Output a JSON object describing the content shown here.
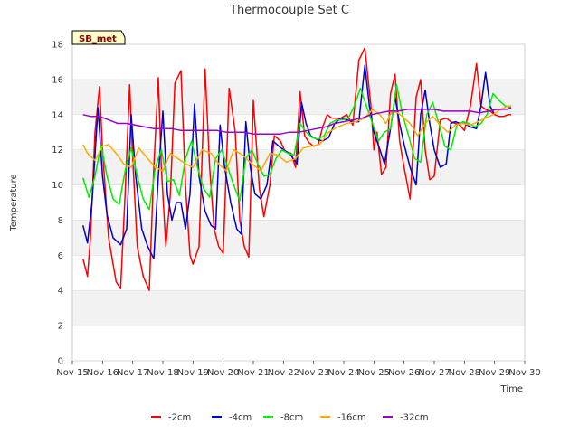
{
  "chart_data": {
    "type": "line",
    "title": "Thermocouple Set C",
    "xlabel": "Time",
    "ylabel": "Temperature",
    "ylim": [
      0,
      18
    ],
    "yticks": [
      0,
      2,
      4,
      6,
      8,
      10,
      12,
      14,
      16,
      18
    ],
    "xlim": [
      0,
      15
    ],
    "xtick_labels": [
      "Nov 15",
      "Nov 16",
      "Nov 17",
      "Nov 18",
      "Nov 19",
      "Nov 20",
      "Nov 21",
      "Nov 22",
      "Nov 23",
      "Nov 24",
      "Nov 25",
      "Nov 26",
      "Nov 27",
      "Nov 28",
      "Nov 29",
      "Nov 30"
    ],
    "grid_bands": true,
    "legend_position": "bottom",
    "station_label": "SB_met",
    "series": [
      {
        "name": "-2cm",
        "color": "#ff0000",
        "x": [
          0.35,
          0.5,
          0.6,
          0.75,
          0.9,
          1.0,
          1.2,
          1.45,
          1.6,
          1.75,
          1.9,
          2.0,
          2.15,
          2.35,
          2.55,
          2.7,
          2.85,
          2.95,
          3.1,
          3.25,
          3.4,
          3.6,
          3.75,
          3.9,
          4.0,
          4.2,
          4.4,
          4.55,
          4.7,
          4.85,
          5.0,
          5.2,
          5.4,
          5.55,
          5.7,
          5.85,
          6.0,
          6.2,
          6.35,
          6.55,
          6.7,
          6.9,
          7.05,
          7.25,
          7.4,
          7.55,
          7.7,
          7.85,
          8.0,
          8.15,
          8.3,
          8.45,
          8.6,
          8.75,
          8.9,
          9.1,
          9.3,
          9.5,
          9.7,
          9.9,
          10.0,
          10.1,
          10.25,
          10.4,
          10.55,
          10.7,
          10.85,
          11.0,
          11.2,
          11.4,
          11.55,
          11.7,
          11.85,
          12.0,
          12.2,
          12.4,
          12.55,
          12.7,
          12.85,
          13.0,
          13.2,
          13.4,
          13.55,
          13.7,
          13.85,
          14.0,
          14.15,
          14.3,
          14.45,
          14.55
        ],
        "y": [
          5.8,
          4.8,
          7.0,
          13.0,
          15.6,
          12.0,
          7.0,
          4.5,
          4.1,
          9.5,
          15.7,
          11.5,
          6.5,
          4.8,
          4.0,
          11.0,
          16.1,
          11.0,
          6.5,
          9.5,
          15.8,
          16.5,
          10.0,
          6.0,
          5.5,
          6.5,
          16.6,
          11.0,
          7.5,
          6.5,
          6.1,
          15.5,
          13.0,
          8.0,
          6.5,
          5.9,
          14.8,
          9.8,
          8.2,
          10.0,
          12.8,
          12.5,
          11.9,
          11.8,
          11.0,
          15.3,
          12.8,
          12.4,
          12.2,
          12.3,
          13.3,
          14.0,
          13.8,
          13.8,
          13.8,
          14.0,
          13.4,
          17.1,
          17.8,
          14.5,
          12.0,
          13.0,
          10.6,
          11.0,
          15.2,
          16.3,
          12.5,
          11.0,
          9.2,
          15.0,
          16.0,
          12.0,
          10.3,
          10.5,
          13.7,
          13.8,
          13.6,
          13.5,
          13.4,
          13.1,
          14.5,
          16.9,
          14.5,
          14.3,
          14.2,
          14.0,
          13.9,
          13.9,
          14.0,
          14.0
        ]
      },
      {
        "name": "-4cm",
        "color": "#0000cc",
        "x": [
          0.35,
          0.5,
          0.65,
          0.85,
          1.0,
          1.15,
          1.35,
          1.6,
          1.8,
          1.95,
          2.1,
          2.3,
          2.5,
          2.7,
          2.85,
          3.0,
          3.15,
          3.3,
          3.45,
          3.6,
          3.75,
          3.9,
          4.05,
          4.2,
          4.4,
          4.6,
          4.75,
          4.9,
          5.05,
          5.25,
          5.45,
          5.6,
          5.75,
          5.9,
          6.05,
          6.25,
          6.45,
          6.65,
          6.85,
          7.0,
          7.2,
          7.45,
          7.6,
          7.75,
          7.9,
          8.1,
          8.3,
          8.5,
          8.7,
          8.9,
          9.1,
          9.3,
          9.5,
          9.7,
          9.85,
          10.0,
          10.2,
          10.35,
          10.55,
          10.7,
          10.85,
          11.0,
          11.2,
          11.4,
          11.55,
          11.7,
          11.85,
          12.0,
          12.2,
          12.4,
          12.55,
          12.7,
          12.85,
          13.0,
          13.2,
          13.4,
          13.55,
          13.7,
          13.85,
          14.0
        ],
        "y": [
          7.7,
          6.7,
          9.0,
          14.4,
          10.5,
          8.3,
          7.0,
          6.6,
          7.5,
          14.0,
          10.5,
          7.5,
          6.5,
          5.8,
          10.5,
          14.2,
          9.5,
          8.0,
          9.0,
          9.0,
          7.5,
          9.5,
          14.6,
          10.5,
          8.5,
          7.7,
          7.5,
          13.4,
          11.0,
          9.0,
          7.5,
          7.2,
          13.6,
          11.0,
          9.5,
          9.2,
          10.0,
          12.5,
          12.2,
          12.0,
          11.8,
          11.2,
          14.7,
          13.5,
          12.8,
          12.6,
          12.5,
          12.7,
          13.5,
          13.8,
          13.7,
          13.6,
          13.6,
          16.8,
          14.5,
          13.0,
          12.0,
          11.2,
          13.2,
          15.0,
          13.5,
          12.3,
          11.0,
          10.0,
          14.0,
          15.4,
          13.5,
          12.0,
          11.0,
          11.2,
          13.5,
          13.6,
          13.5,
          13.5,
          13.3,
          13.2,
          14.5,
          16.4,
          14.5,
          14.0
        ]
      },
      {
        "name": "-8cm",
        "color": "#00ee00",
        "x": [
          0.35,
          0.55,
          0.75,
          0.95,
          1.15,
          1.35,
          1.55,
          1.75,
          1.95,
          2.15,
          2.35,
          2.55,
          2.75,
          2.95,
          3.15,
          3.35,
          3.55,
          3.75,
          3.95,
          4.15,
          4.35,
          4.55,
          4.75,
          4.95,
          5.15,
          5.35,
          5.55,
          5.75,
          5.95,
          6.15,
          6.35,
          6.55,
          6.75,
          6.95,
          7.15,
          7.35,
          7.55,
          7.75,
          7.95,
          8.15,
          8.35,
          8.55,
          8.75,
          8.95,
          9.15,
          9.35,
          9.55,
          9.75,
          9.95,
          10.15,
          10.35,
          10.55,
          10.75,
          10.95,
          11.15,
          11.35,
          11.55,
          11.75,
          11.95,
          12.15,
          12.35,
          12.55,
          12.75,
          12.95,
          13.15,
          13.35,
          13.55,
          13.75,
          13.95,
          14.15,
          14.35,
          14.55
        ],
        "y": [
          10.4,
          9.3,
          10.5,
          12.3,
          10.5,
          9.2,
          8.9,
          10.8,
          12.1,
          10.5,
          9.2,
          8.6,
          11.0,
          12.0,
          10.2,
          10.3,
          9.4,
          11.5,
          12.5,
          11.0,
          9.8,
          9.3,
          11.5,
          12.0,
          11.0,
          10.0,
          9.1,
          11.5,
          12.0,
          11.2,
          10.5,
          10.6,
          11.5,
          12.0,
          11.8,
          11.7,
          13.5,
          13.0,
          12.7,
          12.6,
          12.8,
          13.5,
          13.7,
          13.7,
          13.8,
          14.5,
          15.5,
          14.5,
          13.5,
          12.5,
          13.0,
          13.2,
          15.7,
          14.0,
          12.8,
          11.5,
          11.3,
          14.0,
          14.7,
          13.5,
          12.2,
          12.0,
          13.4,
          13.6,
          13.5,
          13.3,
          13.5,
          14.0,
          15.2,
          14.8,
          14.5,
          14.4
        ]
      },
      {
        "name": "-16cm",
        "color": "#ffaa00",
        "x": [
          0.35,
          0.5,
          0.75,
          1.0,
          1.2,
          1.45,
          1.7,
          1.95,
          2.2,
          2.5,
          2.75,
          3.0,
          3.25,
          3.5,
          3.75,
          4.0,
          4.3,
          4.6,
          4.85,
          5.1,
          5.35,
          5.65,
          5.95,
          6.25,
          6.55,
          6.8,
          7.1,
          7.4,
          7.65,
          7.9,
          8.2,
          8.5,
          8.8,
          9.1,
          9.4,
          9.7,
          9.95,
          10.2,
          10.4,
          10.6,
          10.8,
          11.0,
          11.2,
          11.45,
          11.7,
          11.95,
          12.2,
          12.45,
          12.7,
          12.95,
          13.2,
          13.45,
          13.7,
          13.95,
          14.2,
          14.45,
          14.55
        ],
        "y": [
          12.3,
          11.8,
          11.4,
          12.2,
          12.3,
          11.8,
          11.2,
          11.0,
          12.1,
          11.5,
          11.0,
          10.8,
          11.8,
          11.5,
          11.2,
          11.0,
          12.0,
          11.8,
          11.2,
          10.8,
          12.0,
          11.7,
          11.2,
          10.8,
          11.8,
          11.7,
          11.3,
          11.5,
          12.1,
          12.2,
          12.3,
          13.0,
          13.3,
          13.5,
          13.6,
          13.8,
          14.3,
          14.0,
          13.5,
          14.2,
          14.1,
          13.8,
          13.5,
          12.8,
          13.5,
          13.9,
          13.4,
          13.0,
          13.4,
          13.5,
          13.4,
          13.6,
          13.8,
          14.0,
          14.3,
          14.5,
          14.5
        ]
      },
      {
        "name": "-32cm",
        "color": "#9900cc",
        "x": [
          0.35,
          0.6,
          0.9,
          1.2,
          1.5,
          1.8,
          2.1,
          2.4,
          2.7,
          3.0,
          3.3,
          3.6,
          3.9,
          4.2,
          4.5,
          4.8,
          5.1,
          5.4,
          5.7,
          6.0,
          6.3,
          6.6,
          6.9,
          7.2,
          7.5,
          7.8,
          8.1,
          8.4,
          8.7,
          9.0,
          9.3,
          9.6,
          9.9,
          10.2,
          10.5,
          10.8,
          11.1,
          11.4,
          11.7,
          12.0,
          12.3,
          12.6,
          12.9,
          13.2,
          13.5,
          13.8,
          14.1,
          14.4,
          14.55
        ],
        "y": [
          14.0,
          13.9,
          13.9,
          13.7,
          13.5,
          13.5,
          13.4,
          13.3,
          13.2,
          13.2,
          13.2,
          13.1,
          13.1,
          13.1,
          13.1,
          13.1,
          13.0,
          13.0,
          13.0,
          12.9,
          12.9,
          12.9,
          12.9,
          13.0,
          13.0,
          13.1,
          13.2,
          13.3,
          13.5,
          13.6,
          13.7,
          13.8,
          14.0,
          14.1,
          14.2,
          14.2,
          14.3,
          14.3,
          14.3,
          14.3,
          14.2,
          14.2,
          14.2,
          14.2,
          14.1,
          14.2,
          14.3,
          14.3,
          14.4
        ]
      }
    ]
  }
}
